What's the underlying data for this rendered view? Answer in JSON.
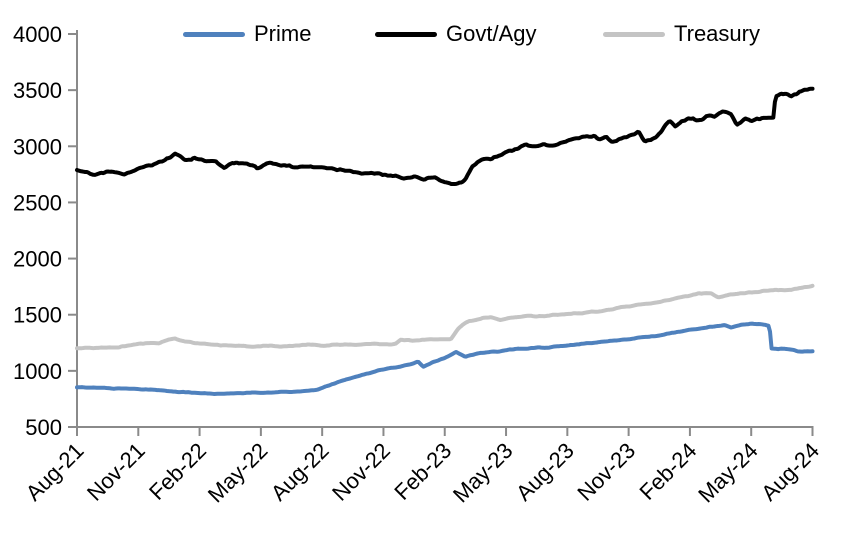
{
  "chart_data": {
    "type": "line",
    "title": "",
    "xlabel": "",
    "ylabel": "",
    "grid": false,
    "legend_position": "top",
    "x_unit": "months since Aug-2021",
    "xlim": [
      0,
      36
    ],
    "ylim": [
      500,
      4000
    ],
    "yticks": [
      500,
      1000,
      1500,
      2000,
      2500,
      3000,
      3500,
      4000
    ],
    "x_tick_months": [
      0,
      3,
      6,
      9,
      12,
      15,
      18,
      21,
      24,
      27,
      30,
      33,
      36
    ],
    "x_tick_labels": [
      "Aug-21",
      "Nov-21",
      "Feb-22",
      "May-22",
      "Aug-22",
      "Nov-22",
      "Feb-23",
      "May-23",
      "Aug-23",
      "Nov-23",
      "Feb-24",
      "May-24",
      "Aug-24"
    ],
    "axis_color": "#8a8a8a",
    "text_color": "#000000",
    "series": [
      {
        "name": "Prime",
        "color": "#4f81bd",
        "noise": 4,
        "keypoints": [
          [
            0,
            852
          ],
          [
            1,
            848
          ],
          [
            2,
            846
          ],
          [
            3,
            840
          ],
          [
            4,
            826
          ],
          [
            5,
            812
          ],
          [
            6,
            801
          ],
          [
            7,
            797
          ],
          [
            8,
            801
          ],
          [
            9,
            806
          ],
          [
            10,
            811
          ],
          [
            11,
            820
          ],
          [
            11.8,
            833
          ],
          [
            12.5,
            878
          ],
          [
            13.2,
            925
          ],
          [
            14,
            963
          ],
          [
            14.8,
            1003
          ],
          [
            15.6,
            1033
          ],
          [
            16.3,
            1058
          ],
          [
            16.7,
            1083
          ],
          [
            16.95,
            1038
          ],
          [
            17.4,
            1078
          ],
          [
            18,
            1118
          ],
          [
            18.55,
            1170
          ],
          [
            19,
            1124
          ],
          [
            19.5,
            1148
          ],
          [
            20,
            1163
          ],
          [
            21,
            1183
          ],
          [
            22,
            1200
          ],
          [
            22.6,
            1213
          ],
          [
            23,
            1204
          ],
          [
            23.6,
            1218
          ],
          [
            24.3,
            1233
          ],
          [
            25,
            1248
          ],
          [
            26,
            1263
          ],
          [
            27,
            1283
          ],
          [
            28,
            1305
          ],
          [
            29,
            1333
          ],
          [
            30,
            1363
          ],
          [
            31,
            1393
          ],
          [
            31.7,
            1408
          ],
          [
            32,
            1385
          ],
          [
            32.5,
            1413
          ],
          [
            33,
            1423
          ],
          [
            33.4,
            1418
          ],
          [
            33.9,
            1400
          ],
          [
            33.98,
            1200
          ],
          [
            34.6,
            1197
          ],
          [
            35,
            1190
          ],
          [
            35.3,
            1175
          ],
          [
            36,
            1172
          ]
        ]
      },
      {
        "name": "Govt/Agy",
        "color": "#000000",
        "noise": 13,
        "keypoints": [
          [
            0,
            2780
          ],
          [
            0.8,
            2757
          ],
          [
            1.5,
            2778
          ],
          [
            2.3,
            2748
          ],
          [
            3,
            2800
          ],
          [
            3.7,
            2823
          ],
          [
            4.3,
            2880
          ],
          [
            4.8,
            2928
          ],
          [
            5.3,
            2872
          ],
          [
            5.8,
            2898
          ],
          [
            6.3,
            2856
          ],
          [
            6.8,
            2874
          ],
          [
            7.2,
            2822
          ],
          [
            7.6,
            2862
          ],
          [
            8.2,
            2848
          ],
          [
            8.8,
            2803
          ],
          [
            9.3,
            2845
          ],
          [
            9.8,
            2838
          ],
          [
            10.5,
            2820
          ],
          [
            11.5,
            2812
          ],
          [
            12.5,
            2800
          ],
          [
            13.5,
            2778
          ],
          [
            14.5,
            2760
          ],
          [
            15.5,
            2745
          ],
          [
            16,
            2722
          ],
          [
            16.5,
            2736
          ],
          [
            17,
            2702
          ],
          [
            17.5,
            2730
          ],
          [
            18,
            2682
          ],
          [
            18.6,
            2662
          ],
          [
            19,
            2700
          ],
          [
            19.35,
            2832
          ],
          [
            19.8,
            2868
          ],
          [
            20.3,
            2898
          ],
          [
            20.8,
            2938
          ],
          [
            21.3,
            2958
          ],
          [
            21.8,
            3008
          ],
          [
            22.3,
            3000
          ],
          [
            22.8,
            3028
          ],
          [
            23.3,
            3018
          ],
          [
            23.8,
            3038
          ],
          [
            24.3,
            3058
          ],
          [
            24.8,
            3088
          ],
          [
            25.3,
            3098
          ],
          [
            25.6,
            3060
          ],
          [
            25.9,
            3088
          ],
          [
            26.2,
            3032
          ],
          [
            26.7,
            3068
          ],
          [
            27.2,
            3108
          ],
          [
            27.5,
            3128
          ],
          [
            27.8,
            3032
          ],
          [
            28.2,
            3060
          ],
          [
            28.6,
            3120
          ],
          [
            29,
            3228
          ],
          [
            29.3,
            3172
          ],
          [
            29.6,
            3228
          ],
          [
            30,
            3248
          ],
          [
            30.4,
            3232
          ],
          [
            30.8,
            3268
          ],
          [
            31.2,
            3258
          ],
          [
            31.6,
            3308
          ],
          [
            32,
            3288
          ],
          [
            32.3,
            3202
          ],
          [
            32.7,
            3258
          ],
          [
            33,
            3232
          ],
          [
            33.4,
            3242
          ],
          [
            33.8,
            3258
          ],
          [
            34.1,
            3268
          ],
          [
            34.18,
            3448
          ],
          [
            34.5,
            3468
          ],
          [
            34.9,
            3452
          ],
          [
            35.3,
            3478
          ],
          [
            35.7,
            3498
          ],
          [
            36,
            3520
          ]
        ]
      },
      {
        "name": "Treasury",
        "color": "#c4c4c4",
        "noise": 6,
        "keypoints": [
          [
            0,
            1200
          ],
          [
            1,
            1205
          ],
          [
            2,
            1210
          ],
          [
            3,
            1238
          ],
          [
            4,
            1250
          ],
          [
            4.8,
            1288
          ],
          [
            5.3,
            1256
          ],
          [
            6,
            1240
          ],
          [
            7,
            1226
          ],
          [
            8,
            1220
          ],
          [
            9,
            1216
          ],
          [
            10,
            1224
          ],
          [
            11,
            1230
          ],
          [
            12,
            1226
          ],
          [
            13,
            1230
          ],
          [
            14,
            1234
          ],
          [
            15,
            1236
          ],
          [
            15.6,
            1240
          ],
          [
            15.85,
            1272
          ],
          [
            16.5,
            1268
          ],
          [
            17.2,
            1278
          ],
          [
            18.3,
            1284
          ],
          [
            18.7,
            1388
          ],
          [
            19.2,
            1448
          ],
          [
            19.7,
            1462
          ],
          [
            20.2,
            1478
          ],
          [
            20.7,
            1455
          ],
          [
            21.2,
            1473
          ],
          [
            21.7,
            1478
          ],
          [
            22.2,
            1488
          ],
          [
            23,
            1490
          ],
          [
            24,
            1504
          ],
          [
            24.7,
            1518
          ],
          [
            25.4,
            1530
          ],
          [
            26,
            1544
          ],
          [
            26.7,
            1568
          ],
          [
            27.4,
            1588
          ],
          [
            28,
            1604
          ],
          [
            28.7,
            1624
          ],
          [
            29.4,
            1644
          ],
          [
            30,
            1668
          ],
          [
            30.5,
            1693
          ],
          [
            31,
            1688
          ],
          [
            31.4,
            1650
          ],
          [
            31.9,
            1678
          ],
          [
            32.4,
            1694
          ],
          [
            33,
            1700
          ],
          [
            33.5,
            1708
          ],
          [
            34,
            1714
          ],
          [
            34.5,
            1720
          ],
          [
            35,
            1730
          ],
          [
            35.5,
            1744
          ],
          [
            36,
            1756
          ]
        ]
      }
    ]
  }
}
